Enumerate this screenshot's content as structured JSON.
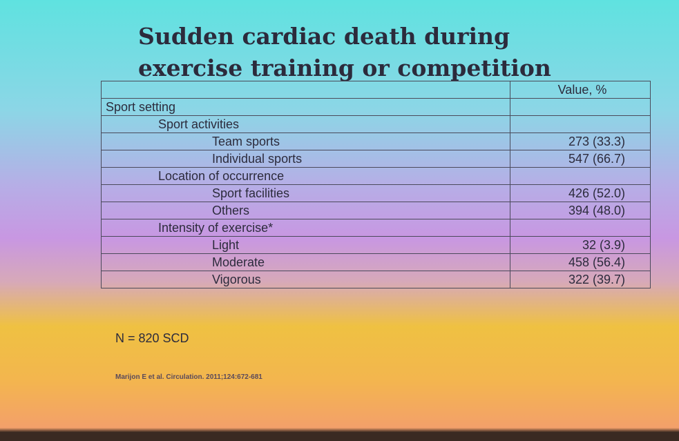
{
  "slide": {
    "title_lines": [
      "Sudden cardiac death during",
      "exercise training or competition"
    ],
    "table": {
      "value_header": "Value, %",
      "section": "Sport setting",
      "groups": [
        {
          "label": "Sport activities",
          "rows": [
            {
              "label": "Team sports",
              "value": "273 (33.3)"
            },
            {
              "label": "Individual sports",
              "value": "547 (66.7)"
            }
          ]
        },
        {
          "label": "Location of occurrence",
          "rows": [
            {
              "label": "Sport facilities",
              "value": "426 (52.0)"
            },
            {
              "label": "Others",
              "value": "394 (48.0)"
            }
          ]
        },
        {
          "label": "Intensity of exercise*",
          "rows": [
            {
              "label": "Light",
              "value": "32 (3.9)"
            },
            {
              "label": "Moderate",
              "value": "458 (56.4)"
            },
            {
              "label": "Vigorous",
              "value": "322 (39.7)"
            }
          ]
        }
      ]
    },
    "footnote": "N = 820 SCD",
    "citation": "Marijon E et al. Circulation. 2011;124:672-681"
  }
}
